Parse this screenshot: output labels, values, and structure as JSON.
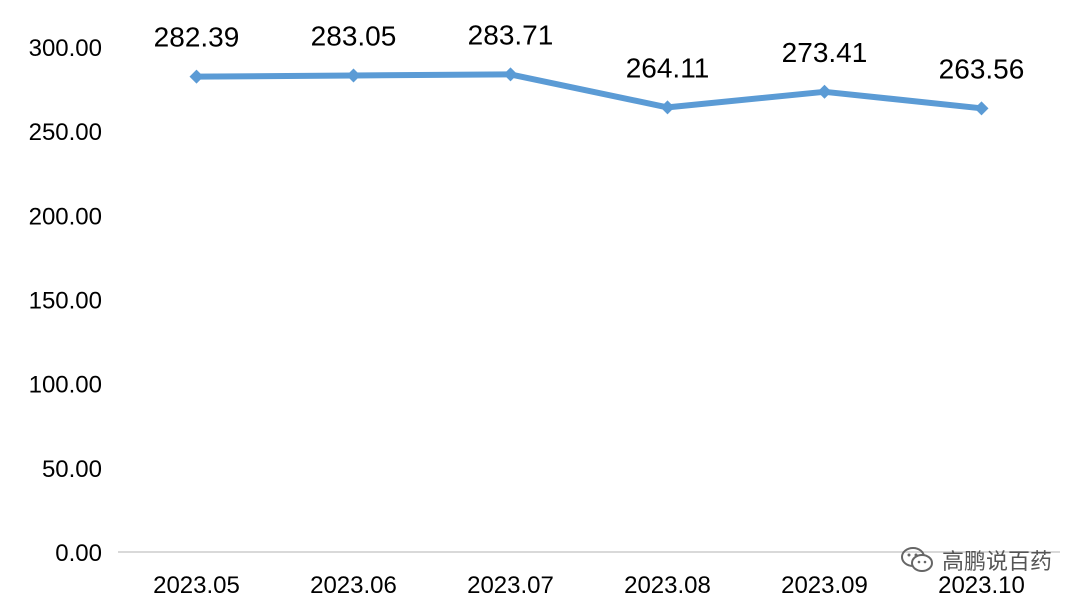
{
  "chart_data": {
    "type": "line",
    "title": "",
    "xlabel": "",
    "ylabel": "",
    "categories": [
      "2023.05",
      "2023.06",
      "2023.07",
      "2023.08",
      "2023.09",
      "2023.10"
    ],
    "series": [
      {
        "values": [
          282.39,
          283.05,
          283.71,
          264.11,
          273.41,
          263.56
        ],
        "labels": [
          "282.39",
          "283.05",
          "283.71",
          "264.11",
          "273.41",
          "263.56"
        ]
      }
    ],
    "yticks": [
      "0.00",
      "50.00",
      "100.00",
      "150.00",
      "200.00",
      "250.00",
      "300.00"
    ],
    "ytick_values": [
      0,
      50,
      100,
      150,
      200,
      250,
      300
    ],
    "ylim": [
      0,
      300
    ],
    "grid": false,
    "line_color": "#5b9bd5",
    "axis_color": "#d9d9d9"
  },
  "watermark": {
    "text": "高鹏说百药",
    "icon": "wechat-icon"
  }
}
